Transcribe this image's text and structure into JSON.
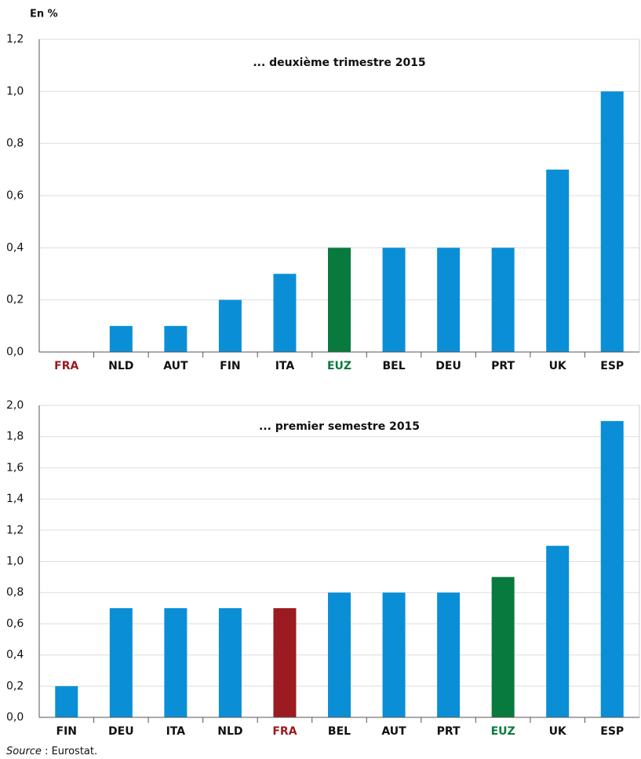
{
  "chart_data": [
    {
      "type": "bar",
      "y_label": "En %",
      "title": "... deuxième trimestre 2015",
      "categories": [
        "FRA",
        "NLD",
        "AUT",
        "FIN",
        "ITA",
        "EUZ",
        "BEL",
        "DEU",
        "PRT",
        "UK",
        "ESP"
      ],
      "values": [
        0,
        0.1,
        0.1,
        0.2,
        0.3,
        0.4,
        0.4,
        0.4,
        0.4,
        0.7,
        1.0
      ],
      "color": "#0a8fd6",
      "colors": [
        "#9b1b20",
        "#0a8fd6",
        "#0a8fd6",
        "#0a8fd6",
        "#0a8fd6",
        "#087a3d",
        "#0a8fd6",
        "#0a8fd6",
        "#0a8fd6",
        "#0a8fd6",
        "#0a8fd6"
      ],
      "ylim": [
        0,
        1.2
      ],
      "yticks": [
        {
          "value": 0,
          "label": "0,0"
        },
        {
          "value": 0.2,
          "label": "0,2"
        },
        {
          "value": 0.4,
          "label": "0,4"
        },
        {
          "value": 0.6,
          "label": "0,6"
        },
        {
          "value": 0.8,
          "label": "0,8"
        },
        {
          "value": 1.0,
          "label": "1,0"
        },
        {
          "value": 1.2,
          "label": "1,2"
        }
      ],
      "grid": true
    },
    {
      "type": "bar",
      "title": "... premier semestre 2015",
      "categories": [
        "FIN",
        "DEU",
        "ITA",
        "NLD",
        "FRA",
        "BEL",
        "AUT",
        "PRT",
        "EUZ",
        "UK",
        "ESP"
      ],
      "values": [
        0.2,
        0.7,
        0.7,
        0.7,
        0.7,
        0.8,
        0.8,
        0.8,
        0.9,
        1.1,
        1.9
      ],
      "color": "#0a8fd6",
      "colors": [
        "#0a8fd6",
        "#0a8fd6",
        "#0a8fd6",
        "#0a8fd6",
        "#9b1b20",
        "#0a8fd6",
        "#0a8fd6",
        "#0a8fd6",
        "#087a3d",
        "#0a8fd6",
        "#0a8fd6"
      ],
      "ylim": [
        0,
        2.0
      ],
      "yticks": [
        {
          "value": 0,
          "label": "0,0"
        },
        {
          "value": 0.2,
          "label": "0,2"
        },
        {
          "value": 0.4,
          "label": "0,4"
        },
        {
          "value": 0.6,
          "label": "0,6"
        },
        {
          "value": 0.8,
          "label": "0,8"
        },
        {
          "value": 1.0,
          "label": "1,0"
        },
        {
          "value": 1.2,
          "label": "1,2"
        },
        {
          "value": 1.4,
          "label": "1,4"
        },
        {
          "value": 1.6,
          "label": "1,6"
        },
        {
          "value": 1.8,
          "label": "1,8"
        },
        {
          "value": 2.0,
          "label": "2,0"
        }
      ],
      "grid": true
    }
  ],
  "source": {
    "label": "Source",
    "text": " : Eurostat."
  }
}
